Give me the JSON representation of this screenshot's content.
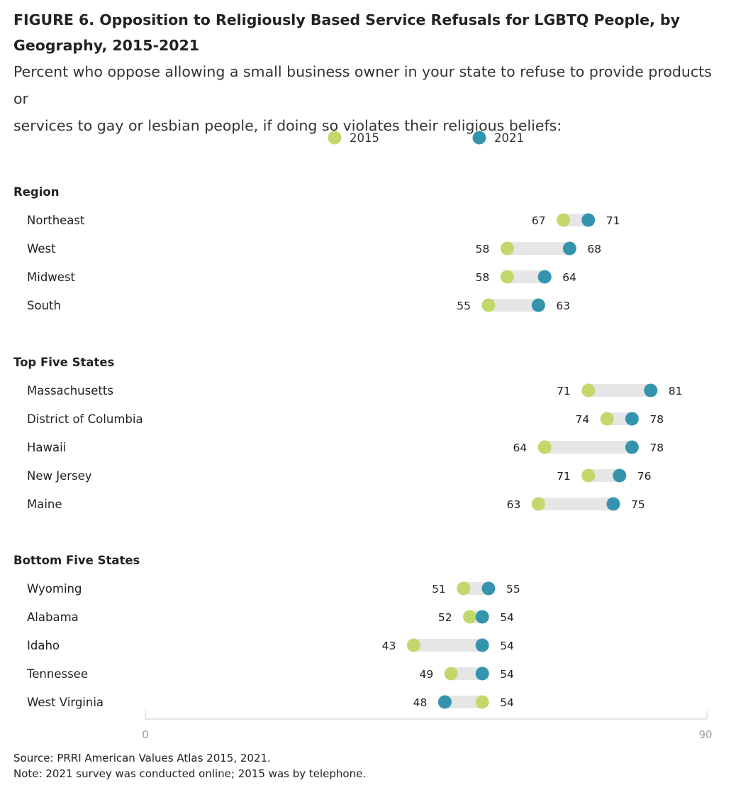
{
  "title_line1": "FIGURE 6.  Opposition to Religiously Based Service Refusals for LGBTQ People, by",
  "title_line2": "Geography, 2015-2021",
  "subtitle_line1": "Percent who oppose allowing a small business owner in your state to refuse to provide products or",
  "subtitle_line2": "services to gay or lesbian people, if doing so violates their religious beliefs:",
  "source": "Source: PRRI American Values Atlas 2015, 2021.",
  "note": "Note: 2021 survey was conducted online; 2015 was by telephone.",
  "colors": {
    "y2015": "#c2d86b",
    "y2021": "#3594ad",
    "track": "#e6e6e6"
  },
  "chart_data": {
    "type": "dumbbell",
    "legend": [
      {
        "name": "2015",
        "color": "#c2d86b"
      },
      {
        "name": "2021",
        "color": "#3594ad"
      }
    ],
    "xlim": [
      0,
      90
    ],
    "xticks": [
      "0",
      "90"
    ],
    "groups": [
      {
        "name": "Region",
        "rows": [
          {
            "label": "Northeast",
            "v2015": 67,
            "v2021": 71
          },
          {
            "label": "West",
            "v2015": 58,
            "v2021": 68
          },
          {
            "label": "Midwest",
            "v2015": 58,
            "v2021": 64
          },
          {
            "label": "South",
            "v2015": 55,
            "v2021": 63
          }
        ]
      },
      {
        "name": "Top Five States",
        "rows": [
          {
            "label": "Massachusetts",
            "v2015": 71,
            "v2021": 81
          },
          {
            "label": "District of Columbia",
            "v2015": 74,
            "v2021": 78
          },
          {
            "label": "Hawaii",
            "v2015": 64,
            "v2021": 78
          },
          {
            "label": "New Jersey",
            "v2015": 71,
            "v2021": 76
          },
          {
            "label": "Maine",
            "v2015": 63,
            "v2021": 75
          }
        ]
      },
      {
        "name": "Bottom Five States",
        "rows": [
          {
            "label": "Wyoming",
            "v2015": 51,
            "v2021": 55
          },
          {
            "label": "Alabama",
            "v2015": 52,
            "v2021": 54
          },
          {
            "label": "Idaho",
            "v2015": 43,
            "v2021": 54
          },
          {
            "label": "Tennessee",
            "v2015": 49,
            "v2021": 54
          },
          {
            "label": "West Virginia",
            "v2015": 54,
            "v2021": 48
          }
        ]
      }
    ]
  }
}
